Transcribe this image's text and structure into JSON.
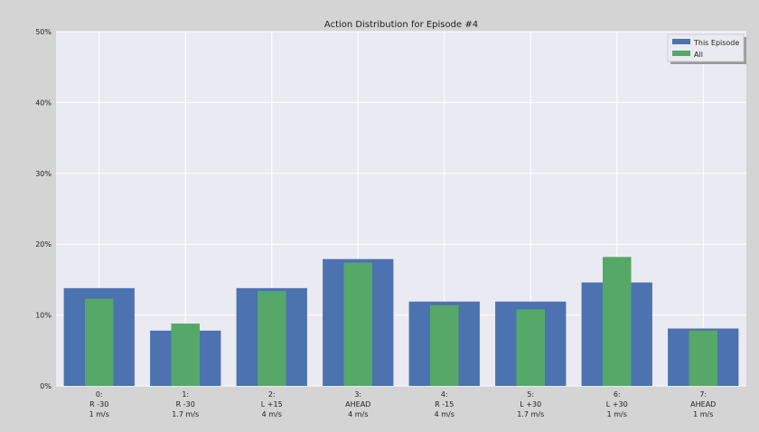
{
  "chart_data": {
    "type": "bar",
    "title": "Action Distribution for Episode #4",
    "xlabel": "",
    "ylabel": "",
    "ylim": [
      0,
      50
    ],
    "yticks": [
      0,
      10,
      20,
      30,
      40,
      50
    ],
    "ytick_labels": [
      "0%",
      "10%",
      "20%",
      "30%",
      "40%",
      "50%"
    ],
    "grid": true,
    "legend_position": "top-right",
    "categories": [
      [
        "0:",
        "R -30",
        "1   m/s"
      ],
      [
        "1:",
        "R -30",
        "1.7 m/s"
      ],
      [
        "2:",
        "L +15",
        "4   m/s"
      ],
      [
        "3:",
        "AHEAD",
        "4   m/s"
      ],
      [
        "4:",
        "R -15",
        "4   m/s"
      ],
      [
        "5:",
        "L +30",
        "1.7 m/s"
      ],
      [
        "6:",
        "L +30",
        "1   m/s"
      ],
      [
        "7:",
        "AHEAD",
        "1   m/s"
      ]
    ],
    "series": [
      {
        "name": "This Episode",
        "color": "#4c72b0",
        "values": [
          13.8,
          7.8,
          13.8,
          17.9,
          11.9,
          11.9,
          14.6,
          8.1
        ]
      },
      {
        "name": "All",
        "color": "#55a868",
        "values": [
          12.3,
          8.8,
          13.4,
          17.4,
          11.4,
          10.8,
          18.2,
          7.8
        ]
      }
    ]
  },
  "colors": {
    "plot_background": "#eaeaf2",
    "page_background": "#d4d4d4",
    "grid": "#ffffff"
  }
}
